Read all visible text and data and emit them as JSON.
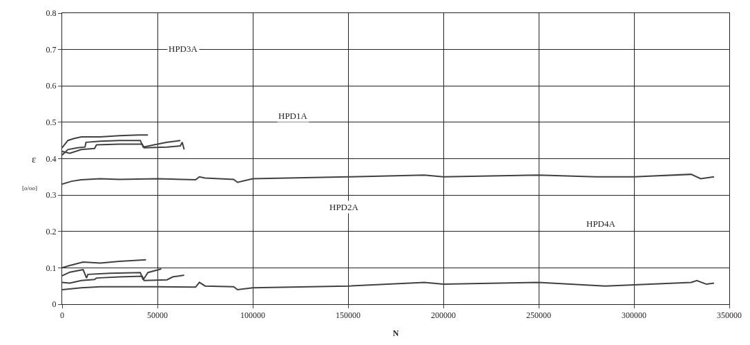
{
  "chart_data": {
    "type": "line",
    "xlabel": "N",
    "ylabel": "ε\n[o/oo]",
    "xlim": [
      0,
      350000
    ],
    "xticks": [
      0,
      50000,
      100000,
      150000,
      200000,
      250000,
      300000,
      350000
    ],
    "ylim": [
      0,
      0.8
    ],
    "yticks": [
      0,
      0.1,
      0.2,
      0.3,
      0.4,
      0.5,
      0.6,
      0.7,
      0.8
    ],
    "grid": true,
    "marker": "none",
    "line_style": "solid",
    "series": [
      {
        "color": "#404040",
        "x": [
          0,
          3000,
          6000,
          10000,
          20000,
          30000,
          40000,
          45000
        ],
        "values": [
          0.43,
          0.45,
          0.455,
          0.46,
          0.46,
          0.463,
          0.465,
          0.465
        ]
      },
      {
        "color": "#404040",
        "x": [
          0,
          3000,
          8000,
          12000,
          12500,
          20000,
          30000,
          41000,
          42500,
          50000,
          55000,
          62000
        ],
        "values": [
          0.41,
          0.425,
          0.43,
          0.432,
          0.445,
          0.448,
          0.45,
          0.45,
          0.432,
          0.44,
          0.445,
          0.45
        ]
      },
      {
        "color": "#404040",
        "x": [
          0,
          4000,
          10000,
          17000,
          18000,
          30000,
          42000,
          43000,
          55000,
          62000,
          63000,
          64000
        ],
        "values": [
          0.42,
          0.415,
          0.425,
          0.428,
          0.438,
          0.44,
          0.44,
          0.43,
          0.432,
          0.435,
          0.445,
          0.425
        ]
      },
      {
        "color": "#404040",
        "x": [
          0,
          5000,
          10000,
          20000,
          30000,
          50000,
          70000,
          72000,
          75000,
          90000,
          92000,
          100000,
          150000,
          190000,
          200000,
          250000,
          280000,
          300000,
          330000,
          335000,
          342000
        ],
        "values": [
          0.33,
          0.338,
          0.342,
          0.345,
          0.343,
          0.345,
          0.342,
          0.35,
          0.347,
          0.343,
          0.335,
          0.345,
          0.35,
          0.355,
          0.35,
          0.355,
          0.35,
          0.35,
          0.357,
          0.345,
          0.35
        ]
      },
      {
        "color": "#404040",
        "x": [
          0,
          3000,
          11000,
          20000,
          30000,
          44000
        ],
        "values": [
          0.1,
          0.105,
          0.116,
          0.113,
          0.118,
          0.122
        ]
      },
      {
        "color": "#404040",
        "x": [
          0,
          4000,
          11000,
          12800,
          13500,
          25000,
          41000,
          42500,
          45000,
          52000
        ],
        "values": [
          0.078,
          0.088,
          0.095,
          0.072,
          0.082,
          0.085,
          0.087,
          0.067,
          0.087,
          0.097
        ]
      },
      {
        "color": "#404040",
        "x": [
          0,
          4000,
          10000,
          17000,
          18000,
          30000,
          42000,
          43000,
          55000,
          58000,
          64000
        ],
        "values": [
          0.06,
          0.058,
          0.065,
          0.068,
          0.072,
          0.075,
          0.077,
          0.065,
          0.067,
          0.075,
          0.08
        ]
      },
      {
        "color": "#404040",
        "x": [
          0,
          10000,
          20000,
          50000,
          70000,
          72000,
          75000,
          90000,
          92000,
          100000,
          150000,
          190000,
          200000,
          250000,
          285000,
          330000,
          333000,
          338000,
          342000
        ],
        "values": [
          0.04,
          0.045,
          0.048,
          0.048,
          0.047,
          0.06,
          0.05,
          0.048,
          0.04,
          0.045,
          0.05,
          0.06,
          0.055,
          0.06,
          0.05,
          0.06,
          0.065,
          0.055,
          0.058
        ]
      }
    ],
    "annotations": [
      "HPD3A",
      "HPD1A",
      "HPD2A",
      "HPD4A"
    ]
  }
}
